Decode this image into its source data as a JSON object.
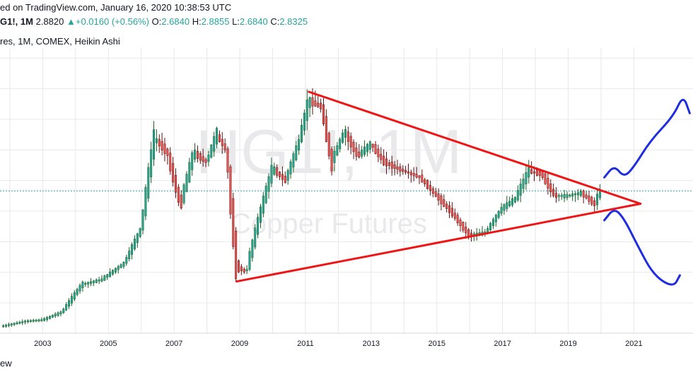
{
  "header": {
    "published_text": "ed on TradingView.com, January 16, 2020 10:38:53 UTC",
    "symbol": "G1!, 1M",
    "last": "2.8820",
    "change": "+0.0160 (+0.56%)",
    "o_label": "O:",
    "o_value": "2.6840",
    "h_label": "H:",
    "h_value": "2.8855",
    "l_label": "L:",
    "l_value": "2.6840",
    "c_label": "C:",
    "c_value": "2.8325",
    "subtitle": "res, 1M, COMEX, Heikin Ashi"
  },
  "watermark": {
    "line1": "HG1!, 1M",
    "line2": "Copper Futures"
  },
  "footer": {
    "text": "ew"
  },
  "colors": {
    "up": "#26a69a",
    "down": "#ef5350",
    "wick_up": "#1b5e20",
    "wick_down": "#5d1212",
    "grid": "#e8e8ec",
    "triangle": "#f01515",
    "arrows": "#1f2de0",
    "price_line": "#26a69a"
  },
  "chart_data": {
    "type": "candlestick",
    "x_tick_labels": [
      "2003",
      "2005",
      "2007",
      "2009",
      "2011",
      "2013",
      "2015",
      "2017",
      "2019",
      "2021"
    ],
    "x_range": [
      2001.7,
      2022.8
    ],
    "y_range": [
      0.55,
      5.05
    ],
    "current_price": 2.83,
    "anchors": [
      [
        2001.8,
        0.62
      ],
      [
        2002.5,
        0.7
      ],
      [
        2003.0,
        0.72
      ],
      [
        2003.6,
        0.85
      ],
      [
        2004.2,
        1.3
      ],
      [
        2004.8,
        1.38
      ],
      [
        2005.5,
        1.65
      ],
      [
        2006.0,
        2.2
      ],
      [
        2006.4,
        3.7
      ],
      [
        2006.8,
        3.45
      ],
      [
        2007.2,
        2.6
      ],
      [
        2007.6,
        3.45
      ],
      [
        2008.0,
        3.3
      ],
      [
        2008.3,
        3.75
      ],
      [
        2008.6,
        3.5
      ],
      [
        2008.9,
        1.6
      ],
      [
        2009.2,
        1.5
      ],
      [
        2009.6,
        2.4
      ],
      [
        2010.0,
        3.2
      ],
      [
        2010.4,
        3.0
      ],
      [
        2010.8,
        3.6
      ],
      [
        2011.1,
        4.3
      ],
      [
        2011.5,
        4.2
      ],
      [
        2011.8,
        3.3
      ],
      [
        2012.2,
        3.8
      ],
      [
        2012.6,
        3.4
      ],
      [
        2013.0,
        3.6
      ],
      [
        2013.4,
        3.3
      ],
      [
        2013.8,
        3.2
      ],
      [
        2014.5,
        3.05
      ],
      [
        2015.0,
        2.75
      ],
      [
        2015.5,
        2.45
      ],
      [
        2016.0,
        2.1
      ],
      [
        2016.5,
        2.15
      ],
      [
        2017.0,
        2.55
      ],
      [
        2017.4,
        2.7
      ],
      [
        2017.8,
        3.15
      ],
      [
        2018.2,
        3.1
      ],
      [
        2018.6,
        2.75
      ],
      [
        2019.0,
        2.75
      ],
      [
        2019.4,
        2.8
      ],
      [
        2019.8,
        2.62
      ],
      [
        2020.0,
        2.83
      ]
    ],
    "triangle": {
      "upper": [
        [
          2011.1,
          4.45
        ],
        [
          2021.2,
          2.62
        ]
      ],
      "lower": [
        [
          2008.9,
          1.35
        ],
        [
          2021.2,
          2.62
        ]
      ]
    },
    "forecast_up": [
      [
        2020.1,
        3.05
      ],
      [
        2020.4,
        3.25
      ],
      [
        2020.7,
        3.05
      ],
      [
        2021.0,
        3.22
      ],
      [
        2021.5,
        3.65
      ],
      [
        2022.2,
        4.05
      ],
      [
        2022.5,
        4.4
      ],
      [
        2022.7,
        4.1
      ]
    ],
    "forecast_down": [
      [
        2020.1,
        2.35
      ],
      [
        2020.4,
        2.55
      ],
      [
        2020.7,
        2.38
      ],
      [
        2021.1,
        1.95
      ],
      [
        2021.6,
        1.45
      ],
      [
        2022.2,
        1.25
      ],
      [
        2022.4,
        1.45
      ]
    ]
  }
}
